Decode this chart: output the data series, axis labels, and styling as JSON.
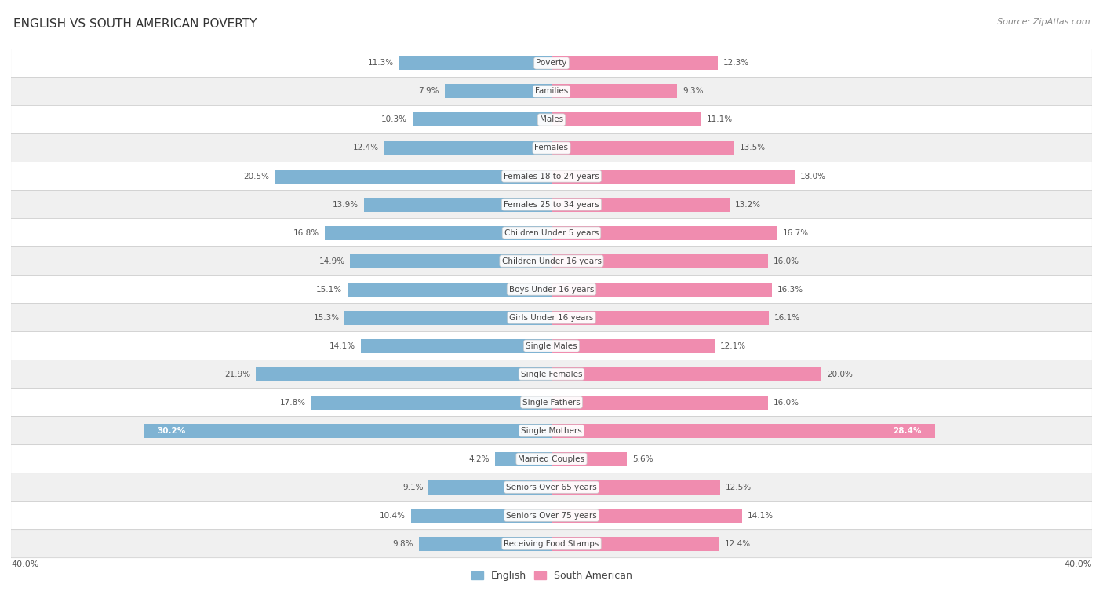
{
  "title": "ENGLISH VS SOUTH AMERICAN POVERTY",
  "source": "Source: ZipAtlas.com",
  "categories": [
    "Poverty",
    "Families",
    "Males",
    "Females",
    "Females 18 to 24 years",
    "Females 25 to 34 years",
    "Children Under 5 years",
    "Children Under 16 years",
    "Boys Under 16 years",
    "Girls Under 16 years",
    "Single Males",
    "Single Females",
    "Single Fathers",
    "Single Mothers",
    "Married Couples",
    "Seniors Over 65 years",
    "Seniors Over 75 years",
    "Receiving Food Stamps"
  ],
  "english_values": [
    11.3,
    7.9,
    10.3,
    12.4,
    20.5,
    13.9,
    16.8,
    14.9,
    15.1,
    15.3,
    14.1,
    21.9,
    17.8,
    30.2,
    4.2,
    9.1,
    10.4,
    9.8
  ],
  "south_american_values": [
    12.3,
    9.3,
    11.1,
    13.5,
    18.0,
    13.2,
    16.7,
    16.0,
    16.3,
    16.1,
    12.1,
    20.0,
    16.0,
    28.4,
    5.6,
    12.5,
    14.1,
    12.4
  ],
  "english_color": "#7fb3d3",
  "south_american_color": "#f08caf",
  "row_color_odd": "#f0f0f0",
  "row_color_even": "#ffffff",
  "background_color": "#ffffff",
  "xlim": 40.0,
  "bar_height": 0.5,
  "title_fontsize": 11,
  "label_fontsize": 7.5,
  "value_fontsize": 7.5,
  "legend_fontsize": 9,
  "source_fontsize": 8
}
